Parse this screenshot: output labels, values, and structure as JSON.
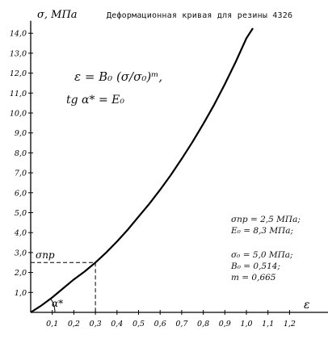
{
  "chart_data": {
    "type": "line",
    "title": "Деформационная кривая для резины 4326",
    "ylabel": "σ, МПа",
    "xlabel": "ε",
    "xlim": [
      0,
      1.3
    ],
    "ylim": [
      0,
      14.3
    ],
    "x_ticks": [
      "0,1",
      "0,2",
      "0,3",
      "0,4",
      "0,5",
      "0,6",
      "0,7",
      "0,8",
      "0,9",
      "1,0",
      "1,1",
      "1,2"
    ],
    "x_tick_values": [
      0.1,
      0.2,
      0.3,
      0.4,
      0.5,
      0.6,
      0.7,
      0.8,
      0.9,
      1.0,
      1.1,
      1.2
    ],
    "y_ticks": [
      "1,0",
      "2,0",
      "3,0",
      "4,0",
      "5,0",
      "6,0",
      "7,0",
      "8,0",
      "9,0",
      "10,0",
      "11,0",
      "12,0",
      "13,0",
      "14,0"
    ],
    "y_tick_values": [
      1,
      2,
      3,
      4,
      5,
      6,
      7,
      8,
      9,
      10,
      11,
      12,
      13,
      14
    ],
    "series": [
      {
        "x": [
          0,
          0.05,
          0.1,
          0.15,
          0.2,
          0.25,
          0.3,
          0.35,
          0.4,
          0.45,
          0.5,
          0.55,
          0.6,
          0.65,
          0.7,
          0.75,
          0.8,
          0.85,
          0.9,
          0.95,
          1.0,
          1.03
        ],
        "y": [
          0,
          0.35,
          0.75,
          1.2,
          1.65,
          2.05,
          2.5,
          3.0,
          3.55,
          4.15,
          4.8,
          5.45,
          6.15,
          6.9,
          7.7,
          8.55,
          9.45,
          10.4,
          11.45,
          12.55,
          13.75,
          14.25
        ]
      }
    ],
    "annotations": {
      "sigma_pr_label": "σпр",
      "sigma_pr_value": 2.5,
      "eps_at_sigma_pr": 0.3,
      "alpha_label": "α*"
    },
    "formula_line1": "ε = B₀ (σ/σ₀)ᵐ,",
    "formula_line2": "tg α* = E₀",
    "params": [
      "σпр = 2,5 МПа;",
      "E₀ = 8,3 МПа;",
      "σ₀ = 5,0 МПа;",
      "B₀ = 0,514;",
      "m = 0,665"
    ]
  }
}
